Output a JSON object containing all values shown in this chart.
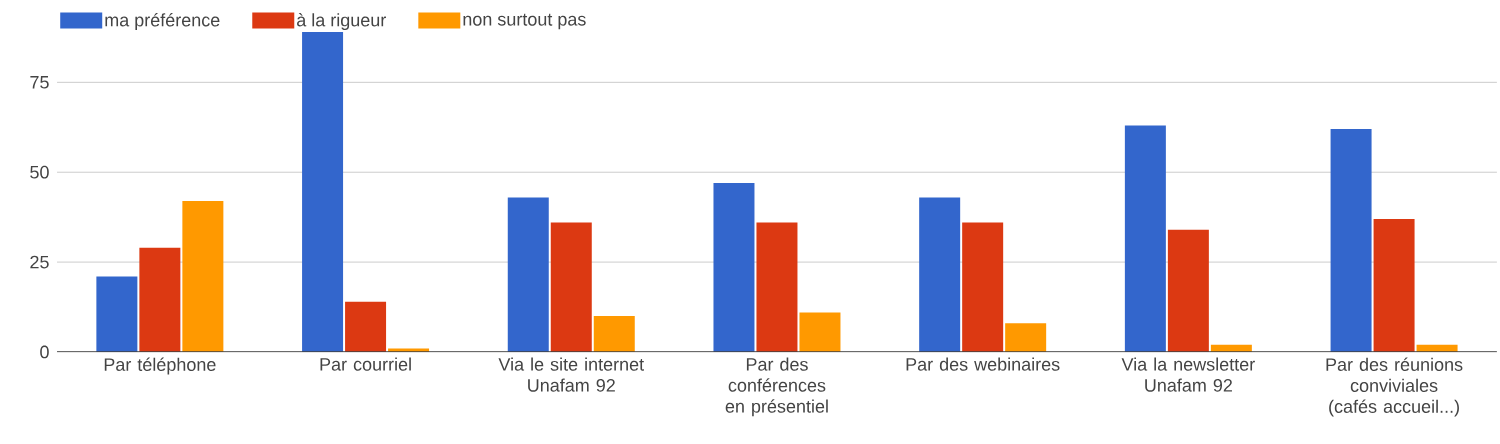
{
  "chart_data": {
    "type": "bar",
    "categories": [
      "Par téléphone",
      "Par courriel",
      "Via le site internet Unafam 92",
      "Par des conférences en présentiel",
      "Par des webinaires",
      "Via la newsletter Unafam 92",
      "Par des réunions conviviales (cafés accueil...)"
    ],
    "series": [
      {
        "name": "ma préférence",
        "color": "#3366cc",
        "values": [
          21,
          89,
          43,
          47,
          43,
          63,
          62
        ]
      },
      {
        "name": "à la rigueur",
        "color": "#dc3912",
        "values": [
          29,
          14,
          36,
          36,
          36,
          34,
          37
        ]
      },
      {
        "name": "non surtout pas",
        "color": "#ff9900",
        "values": [
          42,
          1,
          10,
          11,
          8,
          2,
          2
        ]
      }
    ],
    "ylim": [
      0,
      89
    ],
    "yticks": [
      0,
      25,
      50,
      75
    ],
    "grid": "y",
    "legend": "top left"
  }
}
